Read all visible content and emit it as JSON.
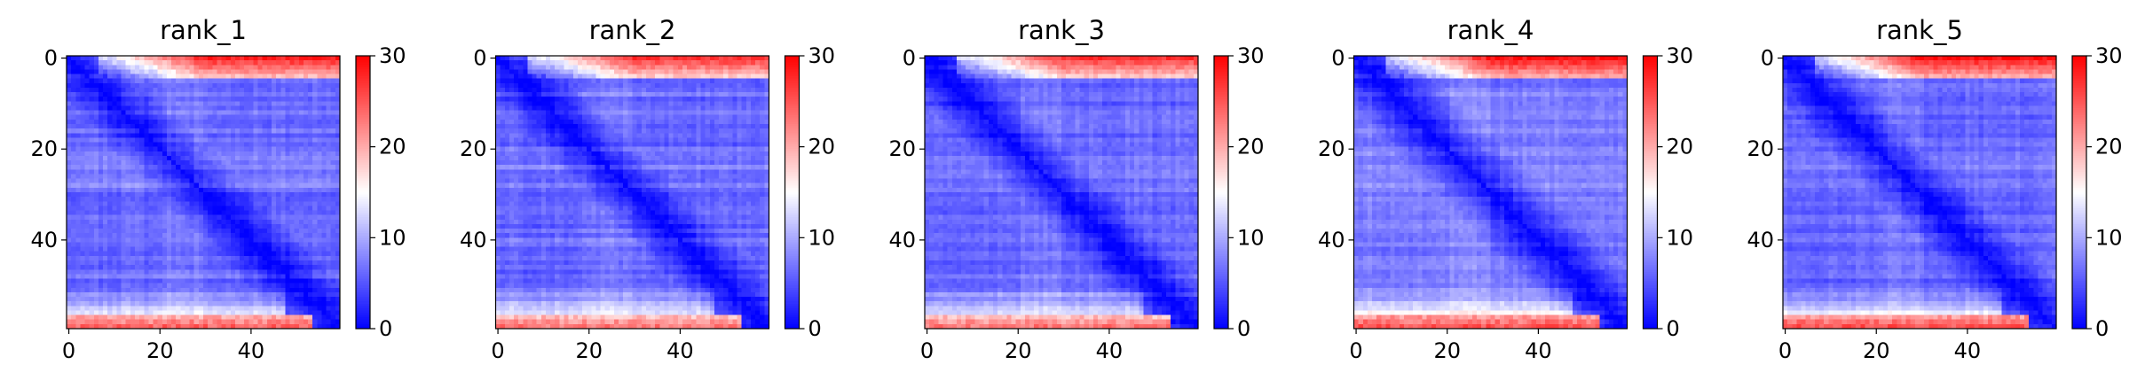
{
  "chart_data": [
    {
      "type": "heatmap",
      "title": "rank_1",
      "matrix_size": 60,
      "xlim": [
        0,
        59
      ],
      "ylim": [
        0,
        59
      ],
      "x_ticks": [
        0,
        20,
        40
      ],
      "y_ticks": [
        0,
        20,
        40
      ],
      "colorbar": {
        "range": [
          0,
          30
        ],
        "ticks": [
          0,
          10,
          20,
          30
        ],
        "colormap": "bwr"
      },
      "description_values": {
        "diagonal": 0,
        "bulk": 6,
        "border_max": 28
      }
    },
    {
      "type": "heatmap",
      "title": "rank_2",
      "matrix_size": 60,
      "xlim": [
        0,
        59
      ],
      "ylim": [
        0,
        59
      ],
      "x_ticks": [
        0,
        20,
        40
      ],
      "y_ticks": [
        0,
        20,
        40
      ],
      "colorbar": {
        "range": [
          0,
          30
        ],
        "ticks": [
          0,
          10,
          20,
          30
        ],
        "colormap": "bwr"
      },
      "description_values": {
        "diagonal": 0,
        "bulk": 6,
        "border_max": 27
      }
    },
    {
      "type": "heatmap",
      "title": "rank_3",
      "matrix_size": 60,
      "xlim": [
        0,
        59
      ],
      "ylim": [
        0,
        59
      ],
      "x_ticks": [
        0,
        20,
        40
      ],
      "y_ticks": [
        0,
        20,
        40
      ],
      "colorbar": {
        "range": [
          0,
          30
        ],
        "ticks": [
          0,
          10,
          20,
          30
        ],
        "colormap": "bwr"
      },
      "description_values": {
        "diagonal": 0,
        "bulk": 6,
        "border_max": 27
      }
    },
    {
      "type": "heatmap",
      "title": "rank_4",
      "matrix_size": 60,
      "xlim": [
        0,
        59
      ],
      "ylim": [
        0,
        59
      ],
      "x_ticks": [
        0,
        20,
        40
      ],
      "y_ticks": [
        0,
        20,
        40
      ],
      "colorbar": {
        "range": [
          0,
          30
        ],
        "ticks": [
          0,
          10,
          20,
          30
        ],
        "colormap": "bwr"
      },
      "description_values": {
        "diagonal": 0,
        "bulk": 7,
        "border_max": 29
      }
    },
    {
      "type": "heatmap",
      "title": "rank_5",
      "matrix_size": 60,
      "xlim": [
        0,
        59
      ],
      "ylim": [
        0,
        59
      ],
      "x_ticks": [
        0,
        20,
        40
      ],
      "y_ticks": [
        0,
        20,
        40
      ],
      "colorbar": {
        "range": [
          0,
          30
        ],
        "ticks": [
          0,
          10,
          20,
          30
        ],
        "colormap": "bwr"
      },
      "description_values": {
        "diagonal": 0,
        "bulk": 6,
        "border_max": 29
      }
    }
  ],
  "colors": {
    "low": "#0000ff",
    "mid": "#ffffff",
    "high": "#ff0000"
  }
}
